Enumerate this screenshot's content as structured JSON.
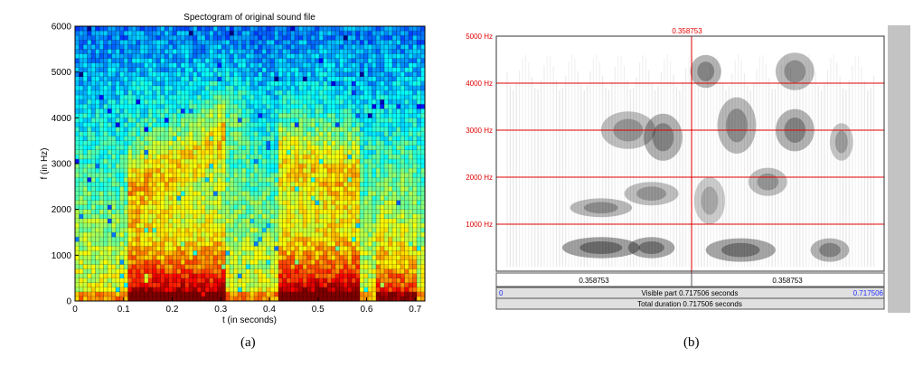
{
  "chart_data": [
    {
      "type": "heatmap",
      "title": "Spectogram of original sound file",
      "xlabel": "t (in seconds)",
      "ylabel": "f (in Hz)",
      "xlim": [
        0,
        0.72
      ],
      "ylim": [
        0,
        6000
      ],
      "xticks": [
        "0",
        "0.1",
        "0.2",
        "0.3",
        "0.4",
        "0.5",
        "0.6",
        "0.7"
      ],
      "yticks": [
        "0",
        "1000",
        "2000",
        "3000",
        "4000",
        "5000",
        "6000"
      ],
      "grid": true,
      "colormap": "jet",
      "intensity_description": "high energy (red) below ~1000 Hz at 0.12–0.30 s and 0.42–0.58 s; medium (yellow) mid band; low (cyan/blue) above ~4000 Hz"
    },
    {
      "type": "heatmap",
      "colormap": "grayscale",
      "yticks": [
        "1000 Hz",
        "2000 Hz",
        "3000 Hz",
        "4000 Hz",
        "5000 Hz"
      ],
      "ylim": [
        0,
        5000
      ],
      "xlim": [
        0,
        0.717506
      ],
      "cursor_time_label": "0.358753",
      "left_segment_label": "0.358753",
      "right_segment_label": "0.358753",
      "visible_start": "0",
      "visible_label": "Visible part 0.717506 seconds",
      "visible_end": "0.717506",
      "total_label": "Total duration 0.717506 seconds",
      "accent_color": "#e00000",
      "link_color": "#2030ff"
    }
  ],
  "captions": {
    "a": "(a)",
    "b": "(b)"
  }
}
